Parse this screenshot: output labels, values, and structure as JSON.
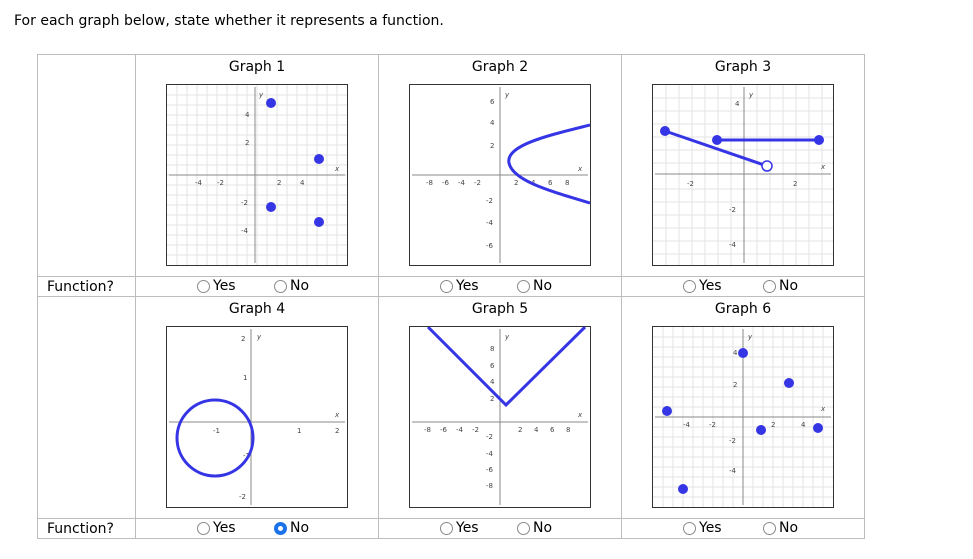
{
  "instruction": "For each graph below, state whether it represents a function.",
  "row_label": "Function?",
  "options": {
    "yes": "Yes",
    "no": "No"
  },
  "accent_color": "#3333dd",
  "graphs": [
    {
      "title": "Graph 1",
      "selected": null
    },
    {
      "title": "Graph 2",
      "selected": null
    },
    {
      "title": "Graph 3",
      "selected": null
    },
    {
      "title": "Graph 4",
      "selected": "No"
    },
    {
      "title": "Graph 5",
      "selected": null
    },
    {
      "title": "Graph 6",
      "selected": null
    }
  ]
}
